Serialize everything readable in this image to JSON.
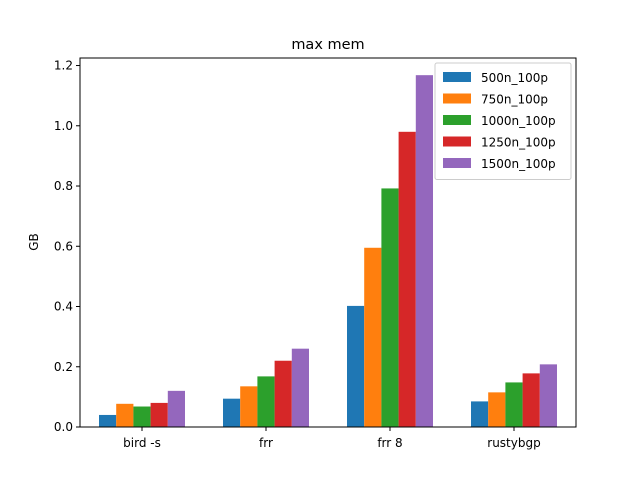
{
  "chart_data": {
    "type": "bar",
    "title": "max mem",
    "xlabel": "",
    "ylabel": "GB",
    "categories": [
      "bird -s",
      "frr",
      "frr 8",
      "rustybgp"
    ],
    "ylim": [
      0,
      1.225
    ],
    "yticks": [
      0.0,
      0.2,
      0.4,
      0.6,
      0.8,
      1.0,
      1.2
    ],
    "ytick_labels": [
      "0.0",
      "0.2",
      "0.4",
      "0.6",
      "0.8",
      "1.0",
      "1.2"
    ],
    "grid": false,
    "legend_position": "top-right",
    "series": [
      {
        "name": "500n_100p",
        "color": "#1f77b4",
        "values": [
          0.04,
          0.094,
          0.402,
          0.085
        ]
      },
      {
        "name": "750n_100p",
        "color": "#ff7f0e",
        "values": [
          0.077,
          0.135,
          0.595,
          0.115
        ]
      },
      {
        "name": "1000n_100p",
        "color": "#2ca02c",
        "values": [
          0.068,
          0.168,
          0.792,
          0.148
        ]
      },
      {
        "name": "1250n_100p",
        "color": "#d62728",
        "values": [
          0.08,
          0.22,
          0.98,
          0.178
        ]
      },
      {
        "name": "1500n_100p",
        "color": "#9467bd",
        "values": [
          0.12,
          0.26,
          1.168,
          0.208
        ]
      }
    ]
  }
}
